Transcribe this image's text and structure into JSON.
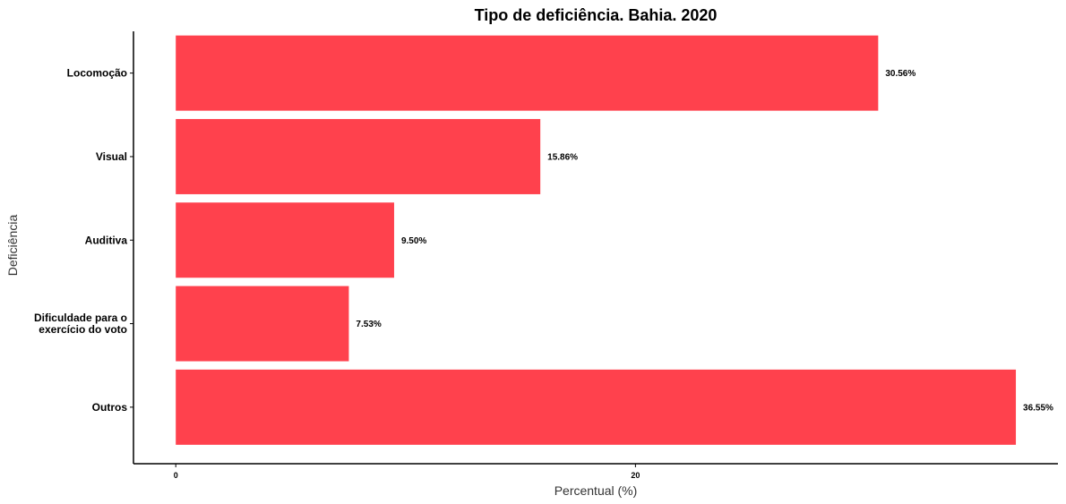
{
  "chart_data": {
    "type": "bar",
    "orientation": "horizontal",
    "title": "Tipo de deficiência. Bahia. 2020",
    "xlabel": "Percentual (%)",
    "ylabel": "Deficiência",
    "categories": [
      "Locomoção",
      "Visual",
      "Auditiva",
      "Dificuldade para o exercício do voto",
      "Outros"
    ],
    "category_lines": [
      [
        "Locomoção"
      ],
      [
        "Visual"
      ],
      [
        "Auditiva"
      ],
      [
        "Dificuldade para o",
        "exercício do voto"
      ],
      [
        "Outros"
      ]
    ],
    "values": [
      30.56,
      15.86,
      9.5,
      7.53,
      36.55
    ],
    "data_labels": [
      "30.56%",
      "15.86%",
      "9.50%",
      "7.53%",
      "36.55%"
    ],
    "x_ticks": [
      0,
      20
    ],
    "x_tick_labels": [
      "0",
      "20"
    ],
    "xlim": [
      -1.84,
      38.38
    ],
    "grid": false,
    "legend": "none",
    "bar_color": "#FF414D",
    "axis_color": "#000000"
  }
}
